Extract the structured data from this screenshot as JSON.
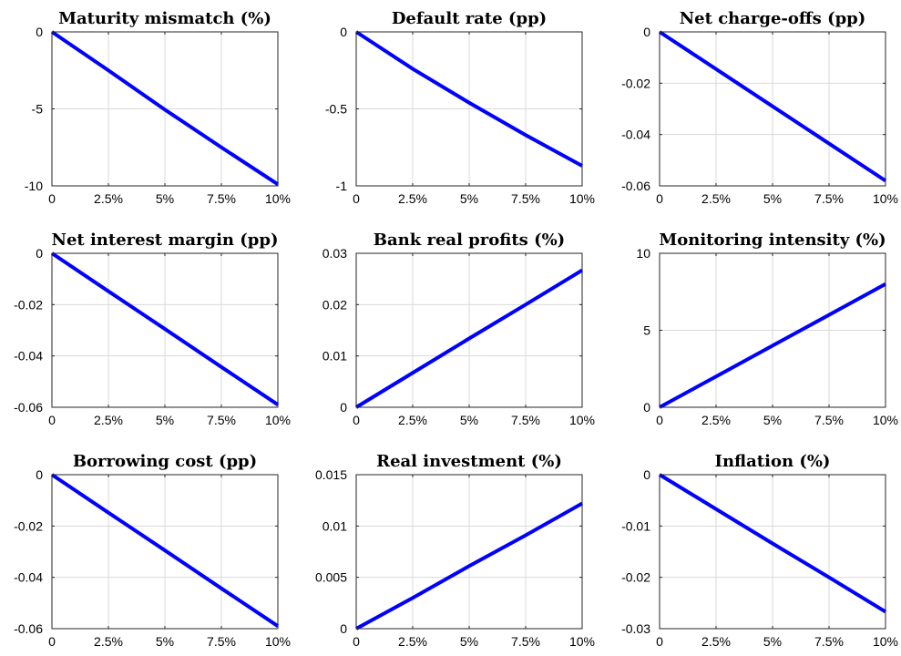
{
  "chart_data": [
    {
      "type": "line",
      "title": "Maturity mismatch (%)",
      "x": [
        0,
        2.5,
        5,
        7.5,
        10
      ],
      "xticks": [
        "0",
        "2.5%",
        "5%",
        "7.5%",
        "10%"
      ],
      "ylim": [
        -10,
        0
      ],
      "yticks": [
        -10,
        -5,
        0
      ],
      "yticklabels": [
        "-10",
        "-5",
        "0"
      ],
      "grid": true,
      "series": [
        {
          "values": [
            0,
            -2.5,
            -5.05,
            -7.5,
            -9.9
          ],
          "color": "#0000ff"
        }
      ]
    },
    {
      "type": "line",
      "title": "Default rate (pp)",
      "x": [
        0,
        2.5,
        5,
        7.5,
        10
      ],
      "xticks": [
        "0",
        "2.5%",
        "5%",
        "7.5%",
        "10%"
      ],
      "ylim": [
        -1,
        0
      ],
      "yticks": [
        -1,
        -0.5,
        0
      ],
      "yticklabels": [
        "-1",
        "-0.5",
        "0"
      ],
      "grid": true,
      "series": [
        {
          "values": [
            0,
            -0.24,
            -0.46,
            -0.67,
            -0.87
          ],
          "color": "#0000ff"
        }
      ]
    },
    {
      "type": "line",
      "title": "Net charge-offs (pp)",
      "x": [
        0,
        2.5,
        5,
        7.5,
        10
      ],
      "xticks": [
        "0",
        "2.5%",
        "5%",
        "7.5%",
        "10%"
      ],
      "ylim": [
        -0.06,
        0
      ],
      "yticks": [
        -0.06,
        -0.04,
        -0.02,
        0
      ],
      "yticklabels": [
        "-0.06",
        "-0.04",
        "-0.02",
        "0"
      ],
      "grid": true,
      "series": [
        {
          "values": [
            0,
            -0.0145,
            -0.029,
            -0.0435,
            -0.058
          ],
          "color": "#0000ff"
        }
      ]
    },
    {
      "type": "line",
      "title": "Net interest margin (pp)",
      "x": [
        0,
        2.5,
        5,
        7.5,
        10
      ],
      "xticks": [
        "0",
        "2.5%",
        "5%",
        "7.5%",
        "10%"
      ],
      "ylim": [
        -0.06,
        0
      ],
      "yticks": [
        -0.06,
        -0.04,
        -0.02,
        0
      ],
      "yticklabels": [
        "-0.06",
        "-0.04",
        "-0.02",
        "0"
      ],
      "grid": true,
      "series": [
        {
          "values": [
            0,
            -0.0148,
            -0.0295,
            -0.0443,
            -0.059
          ],
          "color": "#0000ff"
        }
      ]
    },
    {
      "type": "line",
      "title": "Bank real profits (%)",
      "x": [
        0,
        2.5,
        5,
        7.5,
        10
      ],
      "xticks": [
        "0",
        "2.5%",
        "5%",
        "7.5%",
        "10%"
      ],
      "ylim": [
        0,
        0.03
      ],
      "yticks": [
        0,
        0.01,
        0.02,
        0.03
      ],
      "yticklabels": [
        "0",
        "0.01",
        "0.02",
        "0.03"
      ],
      "grid": true,
      "series": [
        {
          "values": [
            0,
            0.0067,
            0.0134,
            0.02,
            0.0267
          ],
          "color": "#0000ff"
        }
      ]
    },
    {
      "type": "line",
      "title": "Monitoring intensity (%)",
      "x": [
        0,
        2.5,
        5,
        7.5,
        10
      ],
      "xticks": [
        "0",
        "2.5%",
        "5%",
        "7.5%",
        "10%"
      ],
      "ylim": [
        0,
        10
      ],
      "yticks": [
        0,
        5,
        10
      ],
      "yticklabels": [
        "0",
        "5",
        "10"
      ],
      "grid": true,
      "series": [
        {
          "values": [
            0,
            2.0,
            4.0,
            6.0,
            8.0
          ],
          "color": "#0000ff"
        }
      ]
    },
    {
      "type": "line",
      "title": "Borrowing cost (pp)",
      "x": [
        0,
        2.5,
        5,
        7.5,
        10
      ],
      "xticks": [
        "0",
        "2.5%",
        "5%",
        "7.5%",
        "10%"
      ],
      "ylim": [
        -0.06,
        0
      ],
      "yticks": [
        -0.06,
        -0.04,
        -0.02,
        0
      ],
      "yticklabels": [
        "-0.06",
        "-0.04",
        "-0.02",
        "0"
      ],
      "grid": true,
      "series": [
        {
          "values": [
            0,
            -0.0148,
            -0.0295,
            -0.0443,
            -0.059
          ],
          "color": "#0000ff"
        }
      ]
    },
    {
      "type": "line",
      "title": "Real investment (%)",
      "x": [
        0,
        2.5,
        5,
        7.5,
        10
      ],
      "xticks": [
        "0",
        "2.5%",
        "5%",
        "7.5%",
        "10%"
      ],
      "ylim": [
        0,
        0.015
      ],
      "yticks": [
        0,
        0.005,
        0.01,
        0.015
      ],
      "yticklabels": [
        "0",
        "0.005",
        "0.01",
        "0.015"
      ],
      "grid": true,
      "series": [
        {
          "values": [
            0,
            0.003,
            0.0061,
            0.0091,
            0.0122
          ],
          "color": "#0000ff"
        }
      ]
    },
    {
      "type": "line",
      "title": "Inflation (%)",
      "x": [
        0,
        2.5,
        5,
        7.5,
        10
      ],
      "xticks": [
        "0",
        "2.5%",
        "5%",
        "7.5%",
        "10%"
      ],
      "ylim": [
        -0.03,
        0
      ],
      "yticks": [
        -0.03,
        -0.02,
        -0.01,
        0
      ],
      "yticklabels": [
        "-0.03",
        "-0.02",
        "-0.01",
        "0"
      ],
      "grid": true,
      "series": [
        {
          "values": [
            0,
            -0.0067,
            -0.0134,
            -0.02,
            -0.0267
          ],
          "color": "#0000ff"
        }
      ]
    }
  ]
}
